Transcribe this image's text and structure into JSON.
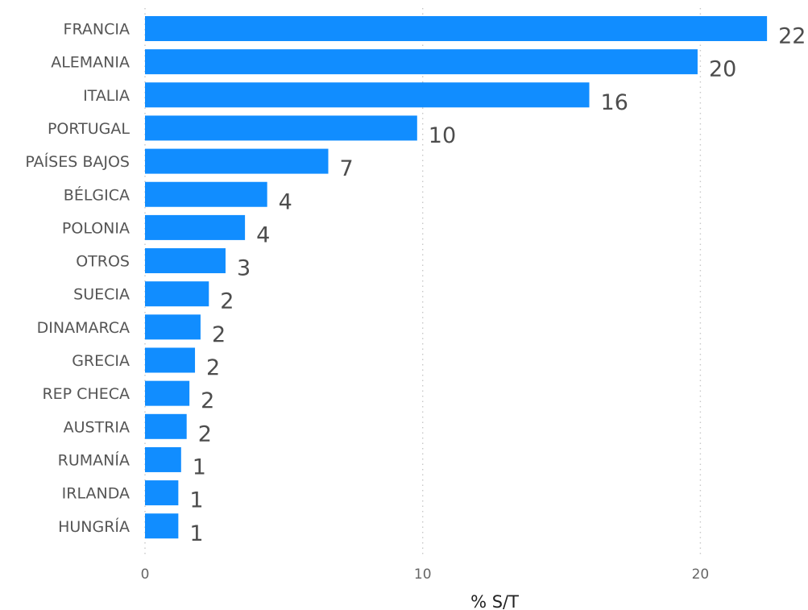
{
  "chart_data": {
    "type": "bar",
    "orientation": "horizontal",
    "categories": [
      "FRANCIA",
      "ALEMANIA",
      "ITALIA",
      "PORTUGAL",
      "PAÍSES BAJOS",
      "BÉLGICA",
      "POLONIA",
      "OTROS",
      "SUECIA",
      "DINAMARCA",
      "GRECIA",
      "REP CHECA",
      "AUSTRIA",
      "RUMANÍA",
      "IRLANDA",
      "HUNGRÍA"
    ],
    "values": [
      22.4,
      19.9,
      16.0,
      9.8,
      6.6,
      4.4,
      3.6,
      2.9,
      2.3,
      2.0,
      1.8,
      1.6,
      1.5,
      1.3,
      1.2,
      1.2
    ],
    "data_labels": [
      "22",
      "20",
      "16",
      "10",
      "7",
      "4",
      "4",
      "3",
      "2",
      "2",
      "2",
      "2",
      "2",
      "1",
      "1",
      "1"
    ],
    "xlabel": "% S/T",
    "ylabel": "",
    "title": "",
    "xlim": [
      0,
      23.2
    ],
    "xticks": [
      0,
      10,
      20
    ],
    "xtick_labels": [
      "0",
      "10",
      "20"
    ],
    "grid": "vertical dotted",
    "legend": "none",
    "bar_color": "#118dff"
  }
}
